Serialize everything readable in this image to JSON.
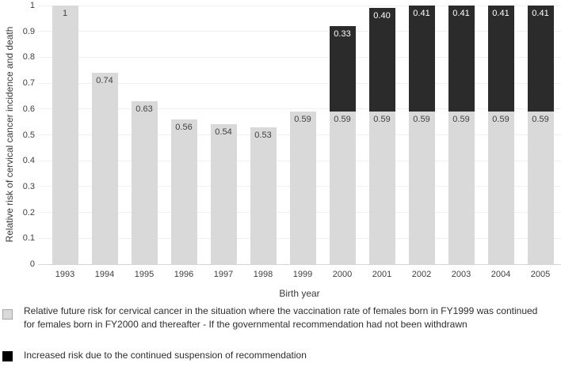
{
  "chart_data": {
    "type": "bar",
    "stacked": true,
    "title": "",
    "xlabel": "Birth year",
    "ylabel": "Relative risk of cervical cancer incidence and death",
    "ylim": [
      0,
      1
    ],
    "grid": "horizontal",
    "legend_position": "bottom",
    "yticks": [
      "1",
      "0.9",
      "0.8",
      "0.7",
      "0.6",
      "0.5",
      "0.4",
      "0.3",
      "0.2",
      "0.1",
      "0"
    ],
    "categories": [
      "1993",
      "1994",
      "1995",
      "1996",
      "1997",
      "1998",
      "1999",
      "2000",
      "2001",
      "2002",
      "2003",
      "2004",
      "2005"
    ],
    "series": [
      {
        "name": "Relative future risk for cervical cancer in the situation where the vaccination rate of females born in FY1999 was continued for females born in FY2000 and thereafter  - If the governmental recommendation had not been withdrawn",
        "color": "#d9d9d9",
        "label_color": "#404040",
        "swatch_border": "#a6a6a6",
        "values": [
          1,
          0.74,
          0.63,
          0.56,
          0.54,
          0.53,
          0.59,
          0.59,
          0.59,
          0.59,
          0.59,
          0.59,
          0.59
        ],
        "labels": [
          "1",
          "0.74",
          "0.63",
          "0.56",
          "0.54",
          "0.53",
          "0.59",
          "0.59",
          "0.59",
          "0.59",
          "0.59",
          "0.59",
          "0.59"
        ]
      },
      {
        "name": "Increased risk due to the continued suspension of recommendation",
        "color": "#2b2b2b",
        "label_color": "#ffffff",
        "swatch_border": "#000000",
        "swatch_color": "#000000",
        "values": [
          0,
          0,
          0,
          0,
          0,
          0,
          0,
          0.33,
          0.4,
          0.41,
          0.41,
          0.41,
          0.41
        ],
        "labels": [
          null,
          null,
          null,
          null,
          null,
          null,
          null,
          "0.33",
          "0.40",
          "0.41",
          "0.41",
          "0.41",
          "0.41"
        ]
      }
    ]
  }
}
